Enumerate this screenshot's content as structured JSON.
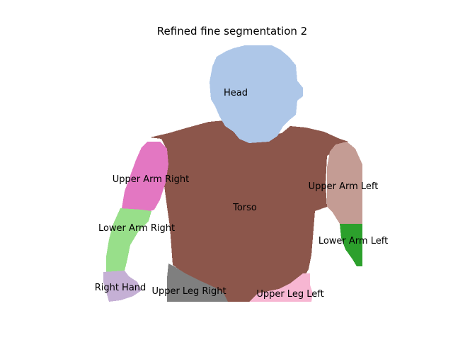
{
  "title": "Refined fine segmentation 2",
  "segments": [
    {
      "id": "head",
      "label": "Head",
      "color": "#aec7e8"
    },
    {
      "id": "torso",
      "label": "Torso",
      "color": "#8c564b"
    },
    {
      "id": "upper-arm-right",
      "label": "Upper Arm Right",
      "color": "#e377c2"
    },
    {
      "id": "lower-arm-right",
      "label": "Lower Arm Right",
      "color": "#98df8a"
    },
    {
      "id": "right-hand",
      "label": "Right Hand",
      "color": "#c5b0d5"
    },
    {
      "id": "upper-arm-left",
      "label": "Upper Arm Left",
      "color": "#c49c94"
    },
    {
      "id": "lower-arm-left",
      "label": "Lower Arm Left",
      "color": "#2ca02c"
    },
    {
      "id": "upper-leg-right",
      "label": "Upper Leg Right",
      "color": "#7f7f7f"
    },
    {
      "id": "upper-leg-left",
      "label": "Upper Leg Left",
      "color": "#f7b6d2"
    }
  ]
}
